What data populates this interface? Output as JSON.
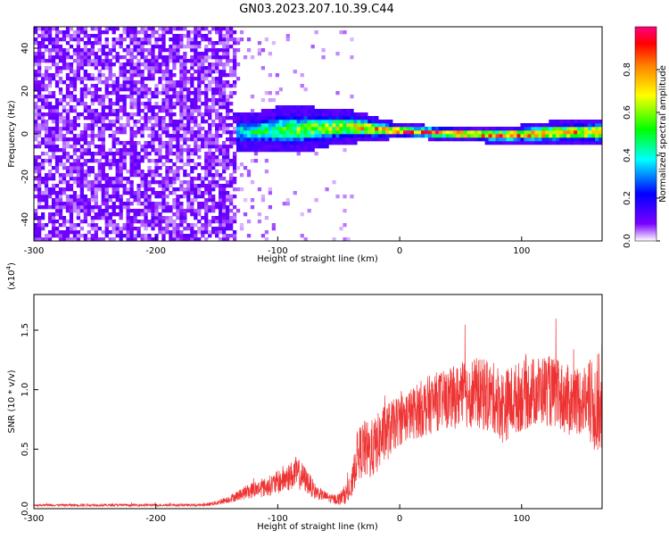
{
  "title": "GN03.2023.207.10.39.C44",
  "chart_data": [
    {
      "type": "heatmap",
      "xlabel": "Height of straight line (km)",
      "ylabel": "Frequency (Hz)",
      "xlim": [
        -300,
        166
      ],
      "ylim": [
        -50,
        50
      ],
      "x_ticks": [
        -300,
        -200,
        -100,
        0,
        100
      ],
      "y_ticks": [
        -40,
        -20,
        0,
        20,
        40
      ],
      "colorbar": {
        "label": "Normalized spectral amplitude",
        "range": [
          0,
          1
        ],
        "ticks": [
          "0.0",
          "0.2",
          "0.4",
          "0.6",
          "0.8"
        ],
        "colormap": [
          "#ffffff",
          "#7b00ff",
          "#0000ff",
          "#00ffff",
          "#00ff00",
          "#ffff00",
          "#ff7f00",
          "#ff0000",
          "#ff007f"
        ]
      },
      "noise_region": {
        "x_range": [
          -300,
          -135
        ],
        "freq_range": [
          -50,
          50
        ],
        "amplitude": 0.05
      },
      "signal_track": {
        "x": [
          -135,
          -120,
          -100,
          -80,
          -60,
          -40,
          -20,
          0,
          20,
          40,
          60,
          80,
          100,
          120,
          140,
          166
        ],
        "center_freq": [
          0,
          0.5,
          1,
          1.5,
          2,
          2.5,
          1.5,
          0.5,
          0,
          -0.5,
          -1,
          -1.5,
          -1,
          -0.5,
          0,
          0
        ],
        "half_width": [
          4,
          4,
          5,
          5,
          4,
          3.5,
          2.5,
          1.5,
          1.5,
          1.5,
          1.5,
          2,
          2,
          2.5,
          2.5,
          3
        ],
        "peak_amplitude": [
          0.4,
          0.45,
          0.5,
          0.55,
          0.6,
          0.65,
          0.75,
          0.85,
          0.9,
          0.85,
          0.8,
          0.8,
          0.8,
          0.8,
          0.75,
          0.7
        ]
      }
    },
    {
      "type": "line",
      "xlabel": "Height of straight line (km)",
      "ylabel": "SNR (10 * v/v)",
      "y_multiplier": "(x10",
      "y_multiplier_exp": "4",
      "y_multiplier_close": ")",
      "xlim": [
        -300,
        166
      ],
      "ylim": [
        0,
        1.8
      ],
      "x_ticks": [
        -300,
        -200,
        -100,
        0,
        100
      ],
      "y_ticks": [
        0.0,
        0.5,
        1.0,
        1.5
      ],
      "y_tick_labels": [
        "0.0",
        "0.5",
        "1.0",
        "1.5"
      ],
      "series": [
        {
          "color": "#ee3333",
          "x": [
            -300,
            -250,
            -200,
            -160,
            -150,
            -140,
            -130,
            -120,
            -110,
            -100,
            -95,
            -90,
            -85,
            -80,
            -75,
            -70,
            -65,
            -60,
            -55,
            -50,
            -45,
            -40,
            -35,
            -30,
            -25,
            -20,
            -15,
            -10,
            -5,
            0,
            10,
            20,
            30,
            40,
            50,
            60,
            70,
            80,
            85,
            90,
            100,
            110,
            120,
            130,
            140,
            150,
            160,
            166
          ],
          "baseline": [
            0.03,
            0.03,
            0.03,
            0.03,
            0.05,
            0.08,
            0.12,
            0.16,
            0.18,
            0.22,
            0.25,
            0.27,
            0.3,
            0.27,
            0.22,
            0.15,
            0.12,
            0.1,
            0.08,
            0.08,
            0.12,
            0.15,
            0.45,
            0.5,
            0.48,
            0.52,
            0.6,
            0.65,
            0.7,
            0.75,
            0.8,
            0.85,
            0.9,
            0.92,
            0.95,
            0.98,
            0.95,
            0.92,
            0.85,
            0.9,
            0.95,
            0.98,
            1.0,
            0.95,
            0.9,
            0.92,
            0.85,
            0.95
          ],
          "noise": [
            0.01,
            0.01,
            0.01,
            0.01,
            0.02,
            0.03,
            0.05,
            0.07,
            0.08,
            0.1,
            0.12,
            0.12,
            0.14,
            0.12,
            0.1,
            0.07,
            0.05,
            0.04,
            0.04,
            0.05,
            0.08,
            0.1,
            0.2,
            0.25,
            0.25,
            0.25,
            0.25,
            0.25,
            0.22,
            0.22,
            0.22,
            0.25,
            0.25,
            0.25,
            0.28,
            0.3,
            0.3,
            0.3,
            0.32,
            0.3,
            0.3,
            0.3,
            0.3,
            0.3,
            0.3,
            0.3,
            0.4,
            0.45
          ]
        }
      ]
    }
  ]
}
